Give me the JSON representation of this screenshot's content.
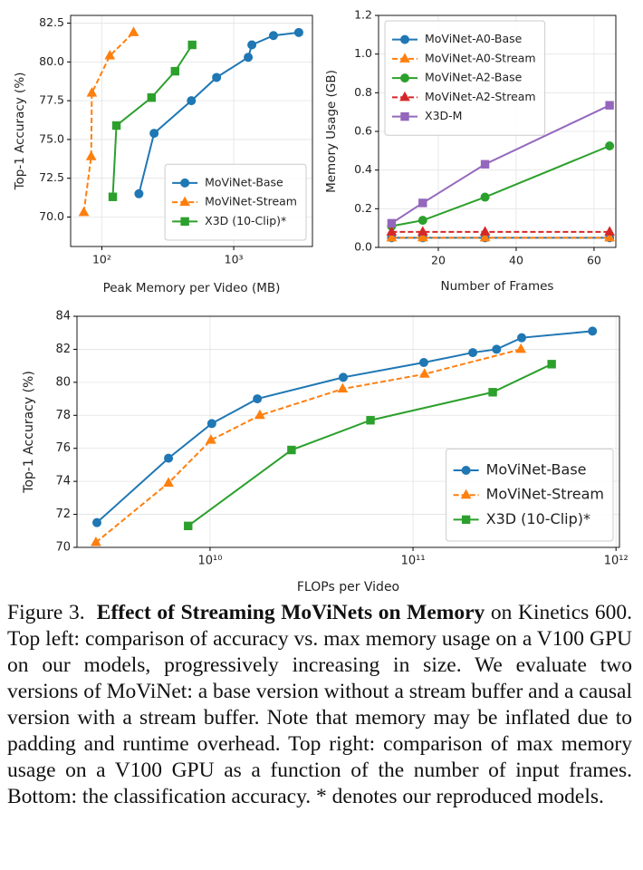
{
  "chart_data": [
    {
      "type": "line",
      "xlabel": "Peak Memory per Video (MB)",
      "ylabel": "Top-1 Accuracy (%)",
      "xscale": "log",
      "xlim": [
        58,
        3950
      ],
      "xticks": [
        {
          "value": 100,
          "label": "10²"
        },
        {
          "value": 1000,
          "label": "10³"
        }
      ],
      "ylim": [
        68.1,
        83
      ],
      "yticks": [
        {
          "value": 70,
          "label": "70.0"
        },
        {
          "value": 72.5,
          "label": "72.5"
        },
        {
          "value": 75,
          "label": "75.0"
        },
        {
          "value": 77.5,
          "label": "77.5"
        },
        {
          "value": 80,
          "label": "80.0"
        },
        {
          "value": 82.5,
          "label": "82.5"
        }
      ],
      "grid": true,
      "legend": "lower right",
      "series": [
        {
          "name": "MoViNet-Base",
          "color": "#1f77b4",
          "marker": "circle",
          "dashed": false,
          "x": [
            191,
            249,
            477,
            741,
            1288,
            1372,
            2000,
            3112
          ],
          "values": [
            71.5,
            75.4,
            77.5,
            79.0,
            80.3,
            81.1,
            81.7,
            81.9
          ]
        },
        {
          "name": "MoViNet-Stream",
          "color": "#ff7f0e",
          "marker": "triangle",
          "dashed": true,
          "x": [
            73,
            83,
            84,
            115,
            174
          ],
          "values": [
            70.3,
            73.9,
            78.0,
            80.4,
            81.9
          ]
        },
        {
          "name": "X3D (10-Clip)*",
          "color": "#2ca02c",
          "marker": "square",
          "dashed": false,
          "x": [
            121,
            129,
            238,
            359,
            484
          ],
          "values": [
            71.3,
            75.9,
            77.7,
            79.4,
            81.1
          ]
        }
      ]
    },
    {
      "type": "line",
      "xlabel": "Number of Frames",
      "ylabel": "Memory Usage (GB)",
      "xscale": "linear",
      "xlim": [
        4.65,
        65.6
      ],
      "xticks": [
        20,
        40,
        60
      ],
      "ylim": [
        0,
        1.2
      ],
      "yticks": [
        {
          "value": 0,
          "label": "0.0"
        },
        {
          "value": 0.2,
          "label": "0.2"
        },
        {
          "value": 0.4,
          "label": "0.4"
        },
        {
          "value": 0.6,
          "label": "0.6"
        },
        {
          "value": 0.8,
          "label": "0.8"
        },
        {
          "value": 1,
          "label": "1.0"
        },
        {
          "value": 1.2,
          "label": "1.2"
        }
      ],
      "grid": true,
      "legend": "upper left",
      "series": [
        {
          "name": "MoViNet-A0-Base",
          "color": "#1f77b4",
          "marker": "circle",
          "dashed": false,
          "x": [
            8,
            16,
            32,
            64
          ],
          "values": [
            0.05,
            0.05,
            0.05,
            0.05
          ]
        },
        {
          "name": "MoViNet-A0-Stream",
          "color": "#ff7f0e",
          "marker": "triangle",
          "dashed": true,
          "x": [
            8,
            16,
            32,
            64
          ],
          "values": [
            0.05,
            0.05,
            0.05,
            0.05
          ]
        },
        {
          "name": "MoViNet-A2-Base",
          "color": "#2ca02c",
          "marker": "circle",
          "dashed": false,
          "x": [
            8,
            16,
            32,
            64
          ],
          "values": [
            0.11,
            0.14,
            0.26,
            0.525
          ]
        },
        {
          "name": "MoViNet-A2-Stream",
          "color": "#d62728",
          "marker": "triangle",
          "dashed": true,
          "x": [
            8,
            16,
            32,
            64
          ],
          "values": [
            0.08,
            0.08,
            0.08,
            0.08
          ]
        },
        {
          "name": "X3D-M",
          "color": "#9467bd",
          "marker": "square",
          "dashed": false,
          "x": [
            8,
            16,
            32,
            64
          ],
          "values": [
            0.125,
            0.23,
            0.43,
            0.735
          ]
        }
      ]
    },
    {
      "type": "line",
      "xlabel": "FLOPs per Video",
      "ylabel": "Top-1 Accuracy (%)",
      "xscale": "log",
      "xlim": [
        2210000000,
        1040000000000
      ],
      "xticks": [
        {
          "value": 10000000000,
          "label": "10¹⁰"
        },
        {
          "value": 100000000000,
          "label": "10¹¹"
        },
        {
          "value": 1000000000000,
          "label": "10¹²"
        }
      ],
      "ylim": [
        70,
        84
      ],
      "yticks": [
        70,
        72,
        74,
        76,
        78,
        80,
        82,
        84
      ],
      "grid": true,
      "legend": "lower right",
      "series": [
        {
          "name": "MoViNet-Base",
          "color": "#1f77b4",
          "marker": "circle",
          "dashed": false,
          "x": [
            2770000000,
            6240000000,
            10200000000,
            17100000000,
            45300000000,
            113000000000,
            197000000000,
            258000000000,
            343000000000,
            766000000000
          ],
          "values": [
            71.5,
            75.4,
            77.5,
            79.0,
            80.3,
            81.2,
            81.8,
            82.0,
            82.7,
            83.1
          ]
        },
        {
          "name": "MoViNet-Stream",
          "color": "#ff7f0e",
          "marker": "triangle",
          "dashed": true,
          "x": [
            2740000000,
            6240000000,
            10100000000,
            17600000000,
            45000000000,
            114000000000,
            340000000000
          ],
          "values": [
            70.3,
            73.9,
            76.5,
            78.0,
            79.6,
            80.5,
            82.0
          ]
        },
        {
          "name": "X3D (10-Clip)*",
          "color": "#2ca02c",
          "marker": "square",
          "dashed": false,
          "x": [
            7800000000,
            25200000000,
            61700000000,
            247000000000,
            482000000000
          ],
          "values": [
            71.3,
            75.9,
            77.7,
            79.4,
            81.1
          ]
        }
      ]
    }
  ],
  "caption": {
    "label": "Figure 3.",
    "title": "Effect of Streaming MoViNets on Memory",
    "text": "on Kinetics 600. Top left: comparison of accuracy vs. max memory usage on a V100 GPU on our models, progressively increasing in size. We evaluate two versions of MoViNet: a base version without a stream buffer and a causal version with a stream buffer. Note that memory may be inflated due to padding and runtime overhead. Top right: comparison of max memory usage on a V100 GPU as a function of the number of input frames. Bottom: the classification accuracy. * denotes our reproduced models."
  }
}
